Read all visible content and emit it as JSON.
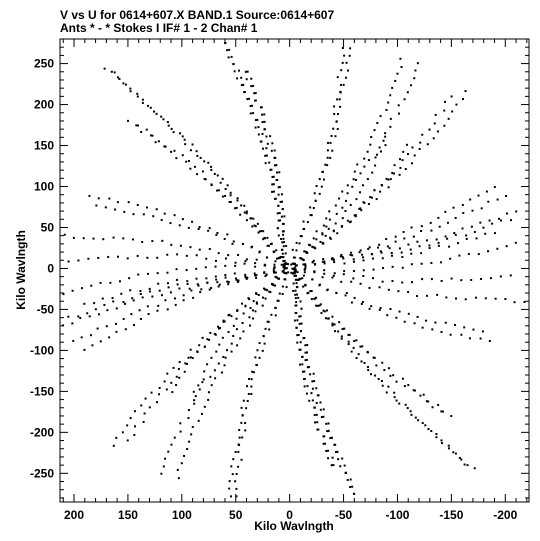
{
  "chart_data": {
    "type": "scatter",
    "title_line1": "V vs U for 0614+607.X BAND.1   Source:0614+607",
    "title_line2": "Ants * - *      Stokes I  IF# 1 - 2  Chan# 1",
    "xlabel": "Kilo Wavlngth",
    "ylabel": "Kilo Wavlngth",
    "xlim": [
      213,
      -222
    ],
    "ylim": [
      -285,
      280
    ],
    "x_ticks": [
      200,
      150,
      100,
      50,
      0,
      -50,
      -100,
      -150,
      -200
    ],
    "x_tick_labels": [
      "200",
      "150",
      "100",
      "50",
      "0",
      "-50",
      "-100",
      "-150",
      "-200"
    ],
    "y_ticks": [
      250,
      200,
      150,
      100,
      50,
      0,
      -50,
      -100,
      -150,
      -200,
      -250
    ],
    "y_tick_labels": [
      "250",
      "200",
      "150",
      "100",
      "50",
      "0",
      "-50",
      "-100",
      "-150",
      "-200",
      "-250"
    ],
    "x_minor_step": 10,
    "y_minor_step": 10,
    "grid": false,
    "marker_color": "#000000",
    "tracks": [
      {
        "start": [
          -5,
          -5
        ],
        "end": [
          -210,
          30
        ]
      },
      {
        "start": [
          -5,
          5
        ],
        "end": [
          -165,
          215
        ]
      },
      {
        "start": [
          -5,
          -5
        ],
        "end": [
          -170,
          -245
        ]
      },
      {
        "start": [
          5,
          -5
        ],
        "end": [
          190,
          -45
        ]
      },
      {
        "start": [
          5,
          5
        ],
        "end": [
          165,
          240
        ]
      },
      {
        "start": [
          5,
          -5
        ],
        "end": [
          105,
          -255
        ]
      },
      {
        "start": [
          0,
          5
        ],
        "end": [
          -50,
          278
        ]
      },
      {
        "start": [
          0,
          -5
        ],
        "end": [
          55,
          -278
        ]
      },
      {
        "start": [
          5,
          0
        ],
        "end": [
          205,
          10
        ]
      },
      {
        "start": [
          -5,
          0
        ],
        "end": [
          -218,
          -40
        ]
      },
      {
        "start": [
          5,
          5
        ],
        "end": [
          60,
          275
        ]
      },
      {
        "start": [
          -5,
          -5
        ],
        "end": [
          -60,
          -275
        ]
      },
      {
        "start": [
          -5,
          5
        ],
        "end": [
          -120,
          250
        ]
      },
      {
        "start": [
          5,
          -5
        ],
        "end": [
          150,
          -210
        ]
      },
      {
        "start": [
          -5,
          0
        ],
        "end": [
          -190,
          100
        ]
      },
      {
        "start": [
          5,
          0
        ],
        "end": [
          200,
          -90
        ]
      },
      {
        "start": [
          5,
          5
        ],
        "end": [
          140,
          175
        ]
      },
      {
        "start": [
          -5,
          -5
        ],
        "end": [
          -150,
          -180
        ]
      },
      {
        "start": [
          -5,
          5
        ],
        "end": [
          -90,
          160
        ]
      },
      {
        "start": [
          5,
          -5
        ],
        "end": [
          110,
          -150
        ]
      },
      {
        "start": [
          5,
          5
        ],
        "end": [
          180,
          75
        ]
      },
      {
        "start": [
          -5,
          -5
        ],
        "end": [
          -185,
          -90
        ]
      },
      {
        "start": [
          5,
          0
        ],
        "end": [
          40,
          240
        ]
      },
      {
        "start": [
          -5,
          0
        ],
        "end": [
          -40,
          -240
        ]
      },
      {
        "start": [
          -5,
          5
        ],
        "end": [
          -210,
          70
        ]
      },
      {
        "start": [
          5,
          -5
        ],
        "end": [
          205,
          -60
        ]
      }
    ]
  }
}
